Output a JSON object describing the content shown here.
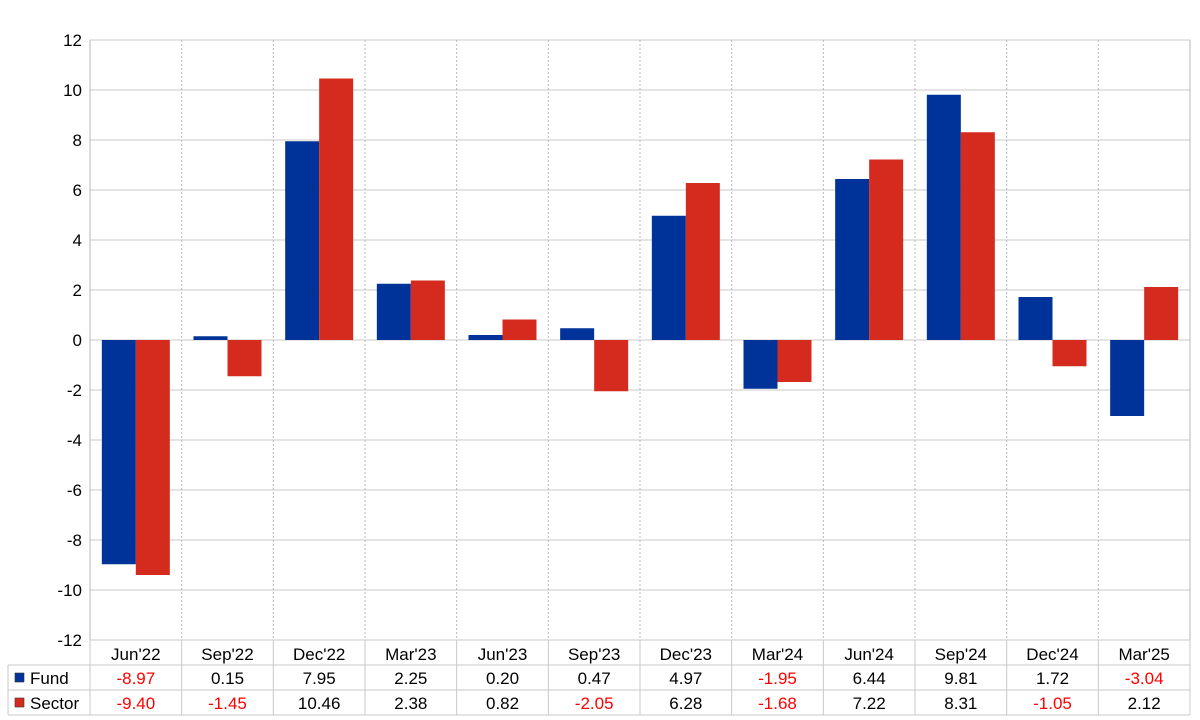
{
  "chart_data": {
    "type": "bar",
    "categories": [
      "Jun'22",
      "Sep'22",
      "Dec'22",
      "Mar'23",
      "Jun'23",
      "Sep'23",
      "Dec'23",
      "Mar'24",
      "Jun'24",
      "Sep'24",
      "Dec'24",
      "Mar'25"
    ],
    "series": [
      {
        "name": "Fund",
        "color": "#003399",
        "values": [
          -8.97,
          0.15,
          7.95,
          2.25,
          0.2,
          0.47,
          4.97,
          -1.95,
          6.44,
          9.81,
          1.72,
          -3.04
        ],
        "labels": [
          "-8.97",
          "0.15",
          "7.95",
          "2.25",
          "0.20",
          "0.47",
          "4.97",
          "-1.95",
          "6.44",
          "9.81",
          "1.72",
          "-3.04"
        ]
      },
      {
        "name": "Sector",
        "color": "#d52b1e",
        "values": [
          -9.4,
          -1.45,
          10.46,
          2.38,
          0.82,
          -2.05,
          6.28,
          -1.68,
          7.22,
          8.31,
          -1.05,
          2.12
        ],
        "labels": [
          "-9.40",
          "-1.45",
          "10.46",
          "2.38",
          "0.82",
          "-2.05",
          "6.28",
          "-1.68",
          "7.22",
          "8.31",
          "-1.05",
          "2.12"
        ]
      }
    ],
    "ylim": [
      -12,
      12
    ],
    "yticks": [
      "12",
      "10",
      "8",
      "6",
      "4",
      "2",
      "0",
      "-2",
      "-4",
      "-6",
      "-8",
      "-10",
      "-12"
    ],
    "negative_label_color": "#ff0000",
    "grid": true,
    "legend": "table-left"
  }
}
